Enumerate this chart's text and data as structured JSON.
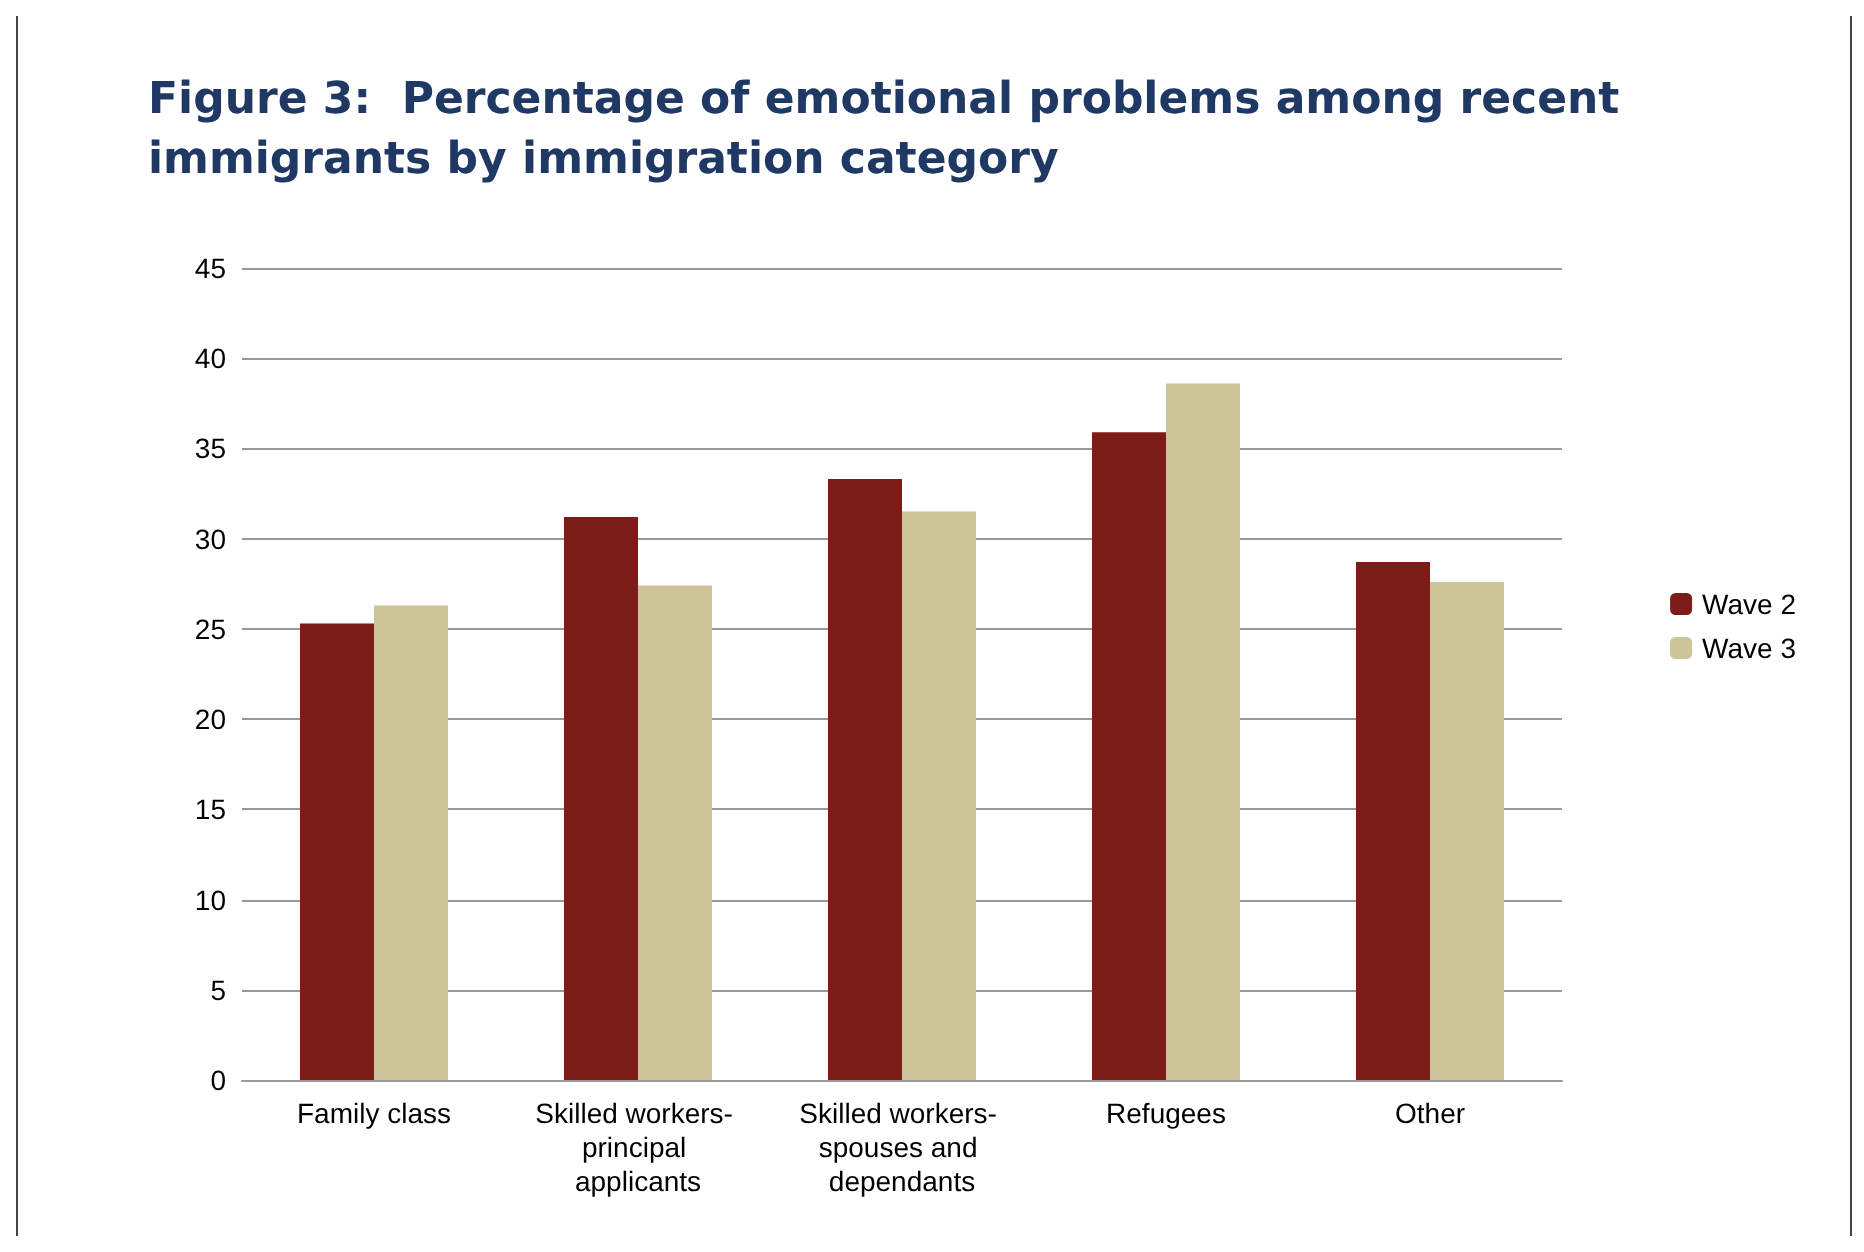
{
  "chart_data": {
    "type": "bar",
    "title": "Figure 3:  Percentage of emotional problems among recent immigrants by immigration category",
    "categories": [
      "Family class",
      "Skilled workers- principal applicants",
      "Skilled workers- spouses and dependants",
      "Refugees",
      "Other"
    ],
    "series": [
      {
        "name": "Wave 2",
        "color": "#7b1c18",
        "values": [
          25.3,
          31.2,
          33.3,
          35.9,
          28.7
        ]
      },
      {
        "name": "Wave 3",
        "color": "#cdc49a",
        "values": [
          26.3,
          27.4,
          31.5,
          38.6,
          27.6
        ]
      }
    ],
    "ylim": [
      0,
      45
    ],
    "yticks": [
      0,
      5,
      10,
      15,
      20,
      25,
      30,
      35,
      40,
      45
    ],
    "grid": "y",
    "legend": "right"
  }
}
